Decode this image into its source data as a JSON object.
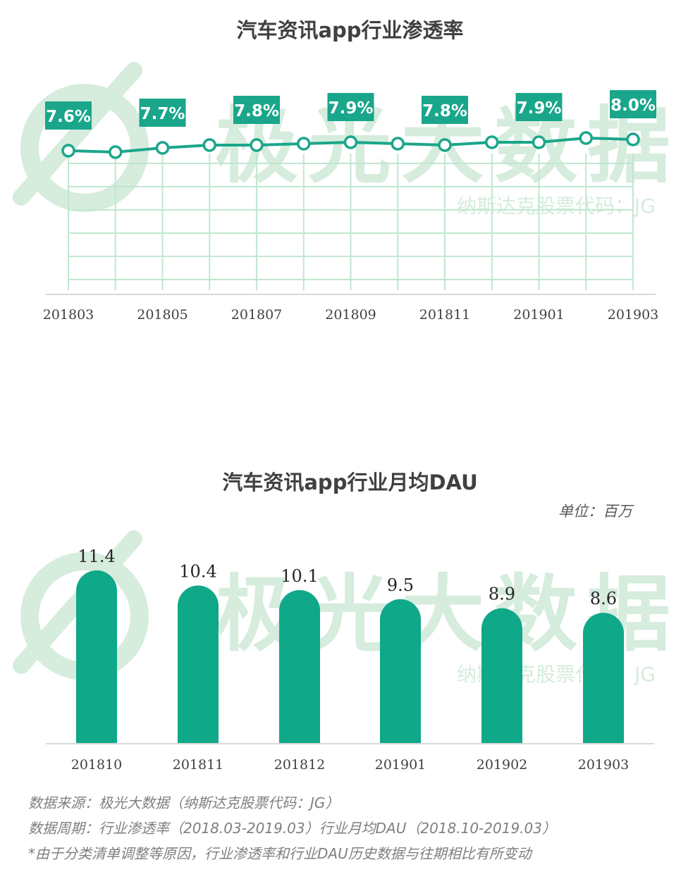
{
  "chart_data": [
    {
      "type": "line",
      "title": "汽车资讯app行业渗透率",
      "x": [
        "201803",
        "201804",
        "201805",
        "201806",
        "201807",
        "201808",
        "201809",
        "201810",
        "201811",
        "201812",
        "201901",
        "201902",
        "201903"
      ],
      "x_tick_labels": [
        "201803",
        "201805",
        "201807",
        "201809",
        "201811",
        "201901",
        "201903"
      ],
      "values": [
        7.6,
        7.55,
        7.7,
        7.8,
        7.8,
        7.85,
        7.9,
        7.85,
        7.8,
        7.9,
        7.9,
        8.05,
        8.0
      ],
      "data_labels": [
        {
          "x": "201803",
          "label": "7.6%"
        },
        {
          "x": "201805",
          "label": "7.7%"
        },
        {
          "x": "201807",
          "label": "7.8%"
        },
        {
          "x": "201809",
          "label": "7.9%"
        },
        {
          "x": "201811",
          "label": "7.8%"
        },
        {
          "x": "201901",
          "label": "7.9%"
        },
        {
          "x": "201903",
          "label": "8.0%"
        }
      ],
      "colors": {
        "line": "#1aa68a",
        "label_bg": "#1aa68a",
        "label_text": "#ffffff",
        "grid": "#bfe7cf"
      }
    },
    {
      "type": "bar",
      "title": "汽车资讯app行业月均DAU",
      "unit": "单位：百万",
      "categories": [
        "201810",
        "201811",
        "201812",
        "201901",
        "201902",
        "201903"
      ],
      "values": [
        11.4,
        10.4,
        10.1,
        9.5,
        8.9,
        8.6
      ],
      "data_labels": [
        "11.4",
        "10.4",
        "10.1",
        "9.5",
        "8.9",
        "8.6"
      ],
      "colors": {
        "bar": "#0fa888"
      }
    }
  ],
  "watermark": {
    "text": "极光大数据",
    "subtext": "纳斯达克股票代码：JG",
    "color": "#d6ecdd"
  },
  "footnotes": [
    "数据来源：极光大数据（纳斯达克股票代码：JG）",
    "数据周期：行业渗透率（2018.03-2019.03）行业月均DAU（2018.10-2019.03）",
    "*由于分类清单调整等原因，行业渗透率和行业DAU历史数据与往期相比有所变动"
  ]
}
